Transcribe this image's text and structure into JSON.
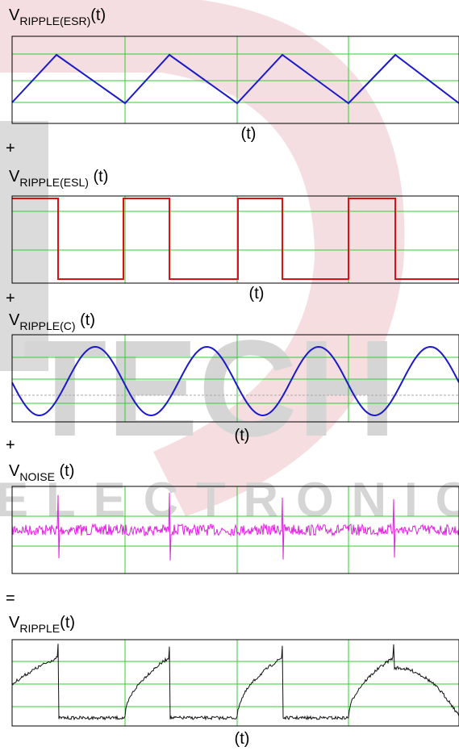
{
  "panels": [
    {
      "label": {
        "main": "V",
        "sub": "RIPPLE(ESR)",
        "tail": "(t)"
      },
      "axis_label": "(t)"
    },
    {
      "label": {
        "main": "V",
        "sub": "RIPPLE(ESL)",
        "tail": " (t)"
      },
      "axis_label": "(t)"
    },
    {
      "label": {
        "main": "V",
        "sub": "RIPPLE(C)",
        "tail": " (t)"
      },
      "axis_label": "(t)"
    },
    {
      "label": {
        "main": "V",
        "sub": "NOISE",
        "tail": " (t)"
      }
    },
    {
      "label": {
        "main": "V",
        "sub": "RIPPLE",
        "tail": "(t)"
      },
      "axis_label": "(t)"
    }
  ],
  "operators": [
    "+",
    "+",
    "+",
    "="
  ],
  "watermark": [
    "TECH",
    "ELECTRONIC"
  ]
}
